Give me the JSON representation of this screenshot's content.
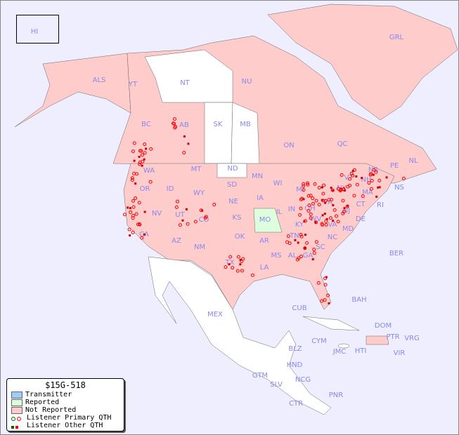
{
  "map_title": "$15G-518",
  "colors": {
    "ocean": "#eeeeff",
    "transmitter": "#99ccff",
    "reported": "#ddffdd",
    "not_reported": "#ffcccc",
    "unlisted": "#ffffff",
    "marker": "#ff0000",
    "marker_alt": "#006600",
    "label": "#8888ee"
  },
  "legend": {
    "items": [
      {
        "label": "Transmitter",
        "type": "swatch",
        "color": "#99ccff"
      },
      {
        "label": "Reported",
        "type": "swatch",
        "color": "#ddffdd"
      },
      {
        "label": "Not Reported",
        "type": "swatch",
        "color": "#ffcccc"
      },
      {
        "label": "Listener Primary QTH",
        "type": "circle"
      },
      {
        "label": "Listener Other QTH",
        "type": "square"
      }
    ]
  },
  "regions": [
    "HI",
    "ALS",
    "YT",
    "NT",
    "NU",
    "GRL",
    "BC",
    "AB",
    "SK",
    "MB",
    "ON",
    "QC",
    "NL",
    "NB",
    "NS",
    "PE",
    "WA",
    "OR",
    "ID",
    "MT",
    "WY",
    "ND",
    "SD",
    "NE",
    "MN",
    "WI",
    "IA",
    "IL",
    "MI",
    "IN",
    "OH",
    "PA",
    "NY",
    "VT",
    "NH",
    "MA",
    "CT",
    "RI",
    "NJ",
    "DE",
    "MD",
    "WV",
    "VA",
    "KY",
    "TN",
    "NC",
    "SC",
    "GA",
    "AL",
    "MS",
    "LA",
    "AR",
    "MO",
    "KS",
    "OK",
    "TX",
    "CO",
    "UT",
    "NV",
    "CA",
    "AZ",
    "NM",
    "BER",
    "BAH",
    "CUB",
    "CYM",
    "JMC",
    "HTI",
    "DOM",
    "PTR",
    "VRG",
    "VIR",
    "MEX",
    "BLZ",
    "GTM",
    "HND",
    "SLV",
    "NCG",
    "CTR",
    "PNR"
  ],
  "reported_regions": [
    "MO"
  ],
  "unlisted_regions": [
    "NT",
    "SK",
    "MB",
    "ND",
    "MEX"
  ]
}
